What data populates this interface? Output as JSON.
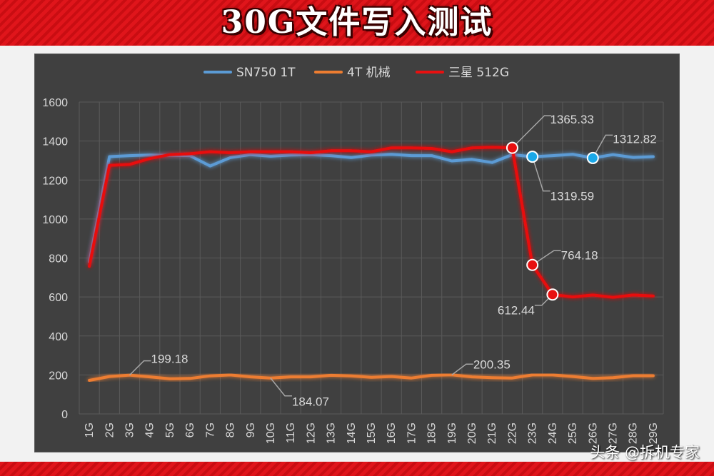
{
  "banner": {
    "title": "30G文件写入测试"
  },
  "watermark": "头条 @拆机专家",
  "colors": {
    "panel": "#404040",
    "grid": "#5a5a5a",
    "text": "#d9d9d9",
    "series": [
      "#5b9bd5",
      "#ed7d31",
      "#e81010"
    ]
  },
  "chart_data": {
    "type": "line",
    "title": "",
    "xlabel": "",
    "ylabel": "",
    "ylim": [
      0,
      1600
    ],
    "yticks": [
      0,
      200,
      400,
      600,
      800,
      1000,
      1200,
      1400,
      1600
    ],
    "grid": true,
    "legend_position": "top",
    "categories": [
      "1G",
      "2G",
      "3G",
      "4G",
      "5G",
      "6G",
      "7G",
      "8G",
      "9G",
      "10G",
      "11G",
      "12G",
      "13G",
      "14G",
      "15G",
      "16G",
      "17G",
      "18G",
      "19G",
      "20G",
      "21G",
      "22G",
      "23G",
      "24G",
      "25G",
      "26G",
      "27G",
      "28G",
      "29G"
    ],
    "series": [
      {
        "name": "SN750  1T",
        "color": "#5b9bd5",
        "values": [
          780,
          1320,
          1325,
          1328,
          1326,
          1325,
          1272,
          1315,
          1330,
          1322,
          1328,
          1330,
          1325,
          1315,
          1328,
          1332,
          1325,
          1325,
          1298,
          1306,
          1290,
          1330,
          1319.59,
          1325,
          1332,
          1312.82,
          1330,
          1316,
          1320
        ]
      },
      {
        "name": "4T 机械",
        "color": "#ed7d31",
        "values": [
          172,
          192,
          199.18,
          190,
          180,
          182,
          195,
          200,
          190,
          184.07,
          190,
          190,
          198,
          195,
          188,
          192,
          184,
          198,
          200.35,
          190,
          186,
          184,
          200,
          200,
          192,
          182,
          186,
          196,
          196
        ]
      },
      {
        "name": "三星 512G",
        "color": "#e81010",
        "values": [
          757,
          1275,
          1280,
          1310,
          1330,
          1335,
          1345,
          1340,
          1345,
          1345,
          1345,
          1340,
          1350,
          1350,
          1345,
          1365,
          1365,
          1362,
          1345,
          1365,
          1368,
          1365.33,
          764.18,
          612.44,
          600,
          610,
          598,
          610,
          605
        ]
      }
    ],
    "callouts": [
      {
        "series": 2,
        "index": 21,
        "label": "1365.33",
        "marker": true
      },
      {
        "series": 0,
        "index": 22,
        "label": "1319.59",
        "marker": true
      },
      {
        "series": 0,
        "index": 25,
        "label": "1312.82",
        "marker": true
      },
      {
        "series": 2,
        "index": 22,
        "label": "764.18",
        "marker": true
      },
      {
        "series": 2,
        "index": 23,
        "label": "612.44",
        "marker": true
      },
      {
        "series": 1,
        "index": 2,
        "label": "199.18",
        "marker": false
      },
      {
        "series": 1,
        "index": 9,
        "label": "184.07",
        "marker": false
      },
      {
        "series": 1,
        "index": 18,
        "label": "200.35",
        "marker": false
      }
    ]
  }
}
